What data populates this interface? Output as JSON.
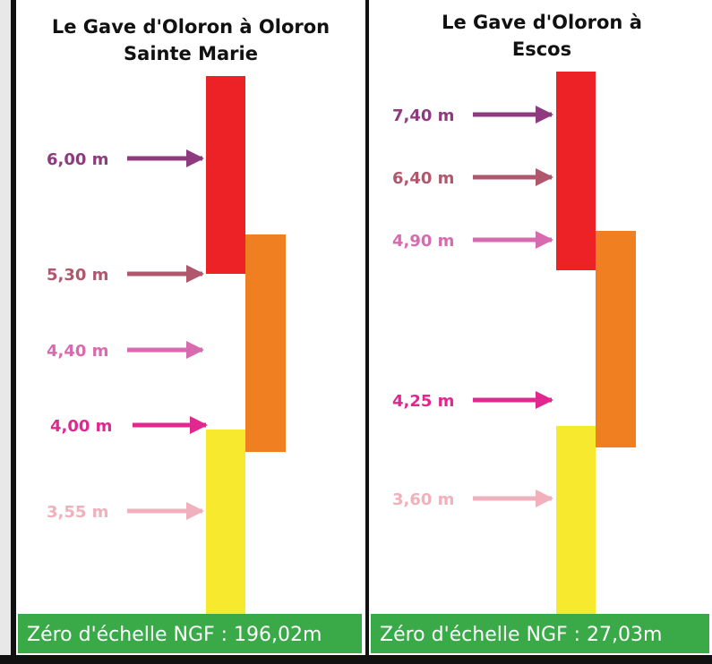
{
  "panels": [
    {
      "title": [
        "Le Gave d'Oloron à Oloron",
        "Sainte Marie"
      ],
      "levels": [
        "6,00 m",
        "5,30 m",
        "4,40 m",
        "4,00 m",
        "3,55 m"
      ],
      "footer": "Zéro d'échelle NGF : 196,02m"
    },
    {
      "title": [
        "Le Gave d'Oloron à",
        "Escos"
      ],
      "levels": [
        "7,40 m",
        "6,40 m",
        "4,90 m",
        "4,25 m",
        "3,60 m"
      ],
      "footer": "Zéro d'échelle NGF : 27,03m"
    }
  ]
}
